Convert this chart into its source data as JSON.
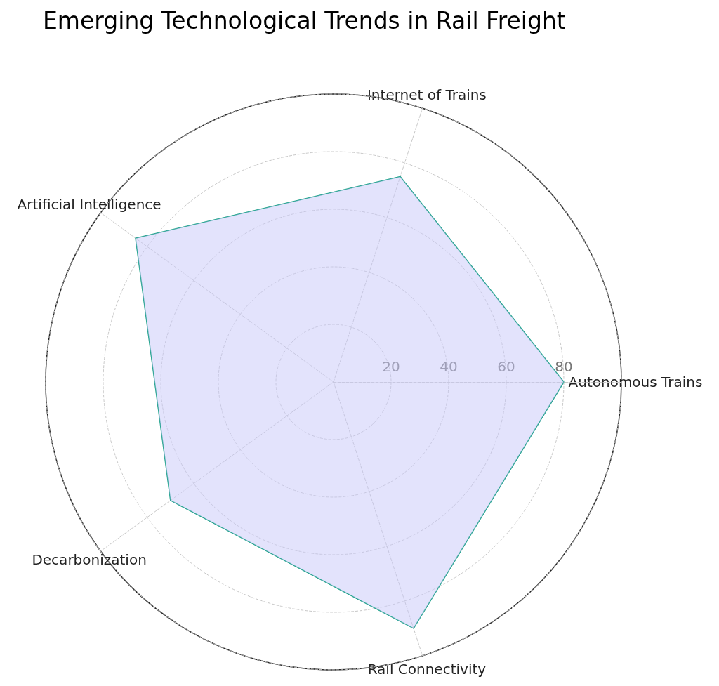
{
  "chart_data": {
    "type": "radar",
    "title": "Emerging Technological Trends in Rail Freight",
    "categories": [
      "Internet of Trains",
      "Autonomous Trains",
      "Rail Connectivity",
      "Decarbonization",
      "Artificial Intelligence"
    ],
    "series": [
      {
        "color": "#16a085",
        "values": [
          75,
          80,
          90,
          70,
          85
        ]
      }
    ],
    "ylim": [
      0,
      100
    ],
    "yticks": [
      20,
      40,
      60,
      80
    ],
    "grid": true,
    "marker": "none",
    "line_style": "solid"
  }
}
